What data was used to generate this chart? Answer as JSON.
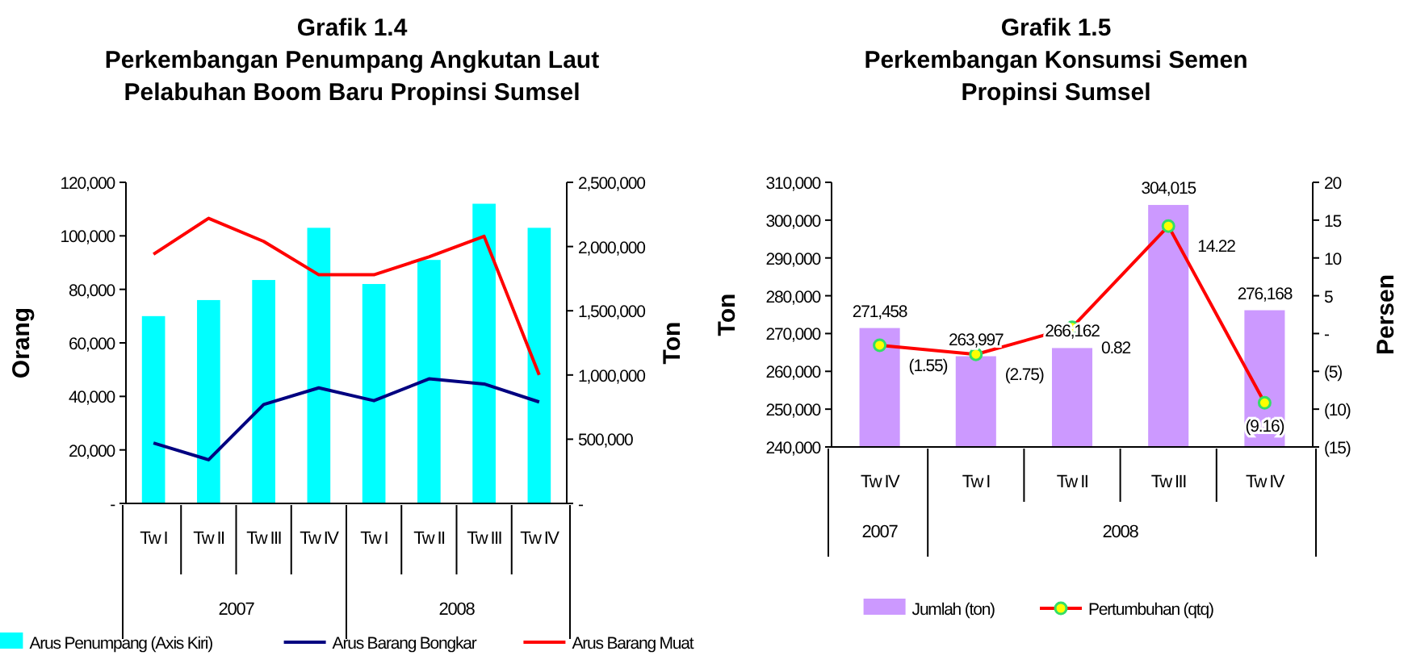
{
  "chart_data": [
    {
      "type": "bar",
      "title": "Grafik 1.4",
      "subtitle": "Perkembangan Penumpang Angkutan Laut Pelabuhan Boom Baru Propinsi Sumsel",
      "ylabel": "Orang",
      "y2label": "Ton",
      "categories": [
        "Tw I",
        "Tw II",
        "Tw III",
        "Tw IV",
        "Tw I",
        "Tw II",
        "Tw III",
        "Tw IV"
      ],
      "series": [
        {
          "name": "Arus Penumpang (Axis Kiri)",
          "color": "#00ffff",
          "values": [
            70000,
            76000,
            83500,
            103000,
            82000,
            91000,
            112000,
            103000
          ]
        },
        {
          "name": "Arus Barang Bongkar",
          "type": "line",
          "axis": "y2",
          "color": "#000080",
          "values": [
            470000,
            340000,
            770000,
            900000,
            800000,
            970000,
            930000,
            790000
          ]
        },
        {
          "name": "Arus Barang Muat",
          "type": "line",
          "axis": "y2",
          "color": "#ff0000",
          "values": [
            1940000,
            2220000,
            2040000,
            1780000,
            1780000,
            1920000,
            2080000,
            1000000
          ]
        }
      ],
      "ylim": [
        0,
        120000
      ],
      "yticks": [
        {
          "value": 0,
          "label": "-"
        },
        {
          "value": 20000,
          "label": "20,000"
        },
        {
          "value": 40000,
          "label": "40,000"
        },
        {
          "value": 60000,
          "label": "60,000"
        },
        {
          "value": 80000,
          "label": "80,000"
        },
        {
          "value": 100000,
          "label": "100,000"
        },
        {
          "value": 120000,
          "label": "120,000"
        }
      ],
      "y2lim": [
        0,
        2500000
      ],
      "y2ticks": [
        {
          "value": 0,
          "label": "-"
        },
        {
          "value": 500000,
          "label": "500,000"
        },
        {
          "value": 1000000,
          "label": "1,000,000"
        },
        {
          "value": 1500000,
          "label": "1,500,000"
        },
        {
          "value": 2000000,
          "label": "2,000,000"
        },
        {
          "value": 2500000,
          "label": "2,500,000"
        }
      ],
      "annotations": [
        "2007",
        "2008"
      ],
      "legend": "bottom",
      "marker": "none",
      "grid": false
    },
    {
      "type": "bar",
      "title": "Grafik 1.5",
      "subtitle": "Perkembangan Konsumsi Semen Propinsi Sumsel",
      "ylabel": "Ton",
      "y2label": "Persen",
      "categories": [
        "Tw IV",
        "Tw I",
        "Tw II",
        "Tw III",
        "Tw IV"
      ],
      "series": [
        {
          "name": "Jumlah (ton)",
          "color": "#cc99ff",
          "values": [
            271458,
            263997,
            266162,
            304015,
            276168
          ],
          "value_labels": [
            "271,458",
            "263,997",
            "266,162",
            "304,015",
            "276,168"
          ]
        },
        {
          "name": "Pertumbuhan (qtq)",
          "type": "line",
          "axis": "y2",
          "color": "#ff0000",
          "marker": "circle",
          "values": [
            -1.55,
            -2.75,
            0.82,
            14.22,
            -9.16
          ],
          "value_labels": [
            "(1.55)",
            "(2.75)",
            "0.82",
            "14.22",
            "(9.16)"
          ]
        }
      ],
      "ylim": [
        240000,
        310000
      ],
      "yticks": [
        {
          "value": 240000,
          "label": "240,000"
        },
        {
          "value": 250000,
          "label": "250,000"
        },
        {
          "value": 260000,
          "label": "260,000"
        },
        {
          "value": 270000,
          "label": "270,000"
        },
        {
          "value": 280000,
          "label": "280,000"
        },
        {
          "value": 290000,
          "label": "290,000"
        },
        {
          "value": 300000,
          "label": "300,000"
        },
        {
          "value": 310000,
          "label": "310,000"
        }
      ],
      "y2lim": [
        -15,
        20
      ],
      "y2ticks": [
        {
          "value": -15,
          "label": "(15)"
        },
        {
          "value": -10,
          "label": "(10)"
        },
        {
          "value": -5,
          "label": "(5)"
        },
        {
          "value": 0,
          "label": "-"
        },
        {
          "value": 5,
          "label": "5"
        },
        {
          "value": 10,
          "label": "10"
        },
        {
          "value": 15,
          "label": "15"
        },
        {
          "value": 20,
          "label": "20"
        }
      ],
      "annotations": [
        "2007",
        "2008"
      ],
      "legend": "bottom",
      "grid": false
    }
  ]
}
